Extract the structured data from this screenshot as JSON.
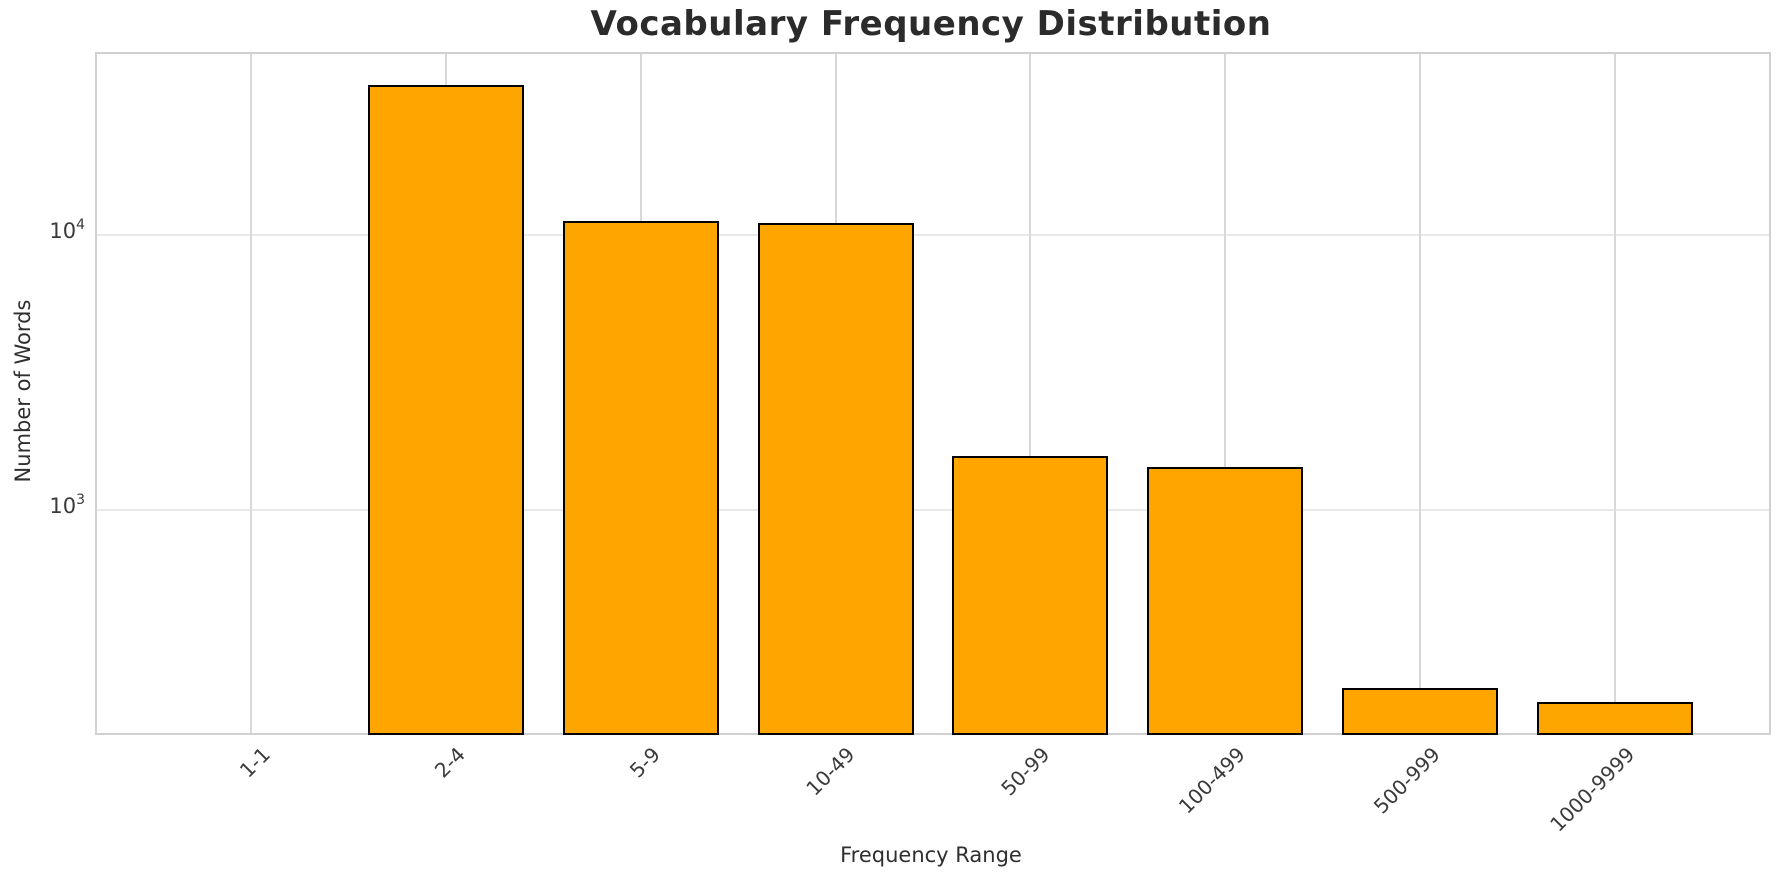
{
  "chart_data": {
    "type": "bar",
    "title": "Vocabulary Frequency Distribution",
    "xlabel": "Frequency Range",
    "ylabel": "Number of Words",
    "categories": [
      "1-1",
      "2-4",
      "5-9",
      "10-49",
      "50-99",
      "100-499",
      "500-999",
      "1000-9999"
    ],
    "values": [
      0,
      35000,
      11200,
      11000,
      1570,
      1430,
      225,
      200
    ],
    "yscale": "log",
    "ylim": [
      154.5,
      45300
    ],
    "xlim": [
      -0.79,
      7.79
    ],
    "bar_width_fraction": 0.8,
    "yticks": [
      {
        "value": 1000,
        "base": "10",
        "exp": "3"
      },
      {
        "value": 10000,
        "base": "10",
        "exp": "4"
      }
    ],
    "grid": true,
    "legend": false,
    "x_tick_rotation_deg": 45
  },
  "colors": {
    "bar_fill": "#FFA500",
    "bar_edge": "#000000",
    "vgrid": "#d8d8d8",
    "hgrid": "#e9e9e9",
    "spine": "#d0d0d0",
    "title_text": "#2b2b2b",
    "tick_text": "#3a3a3a"
  }
}
